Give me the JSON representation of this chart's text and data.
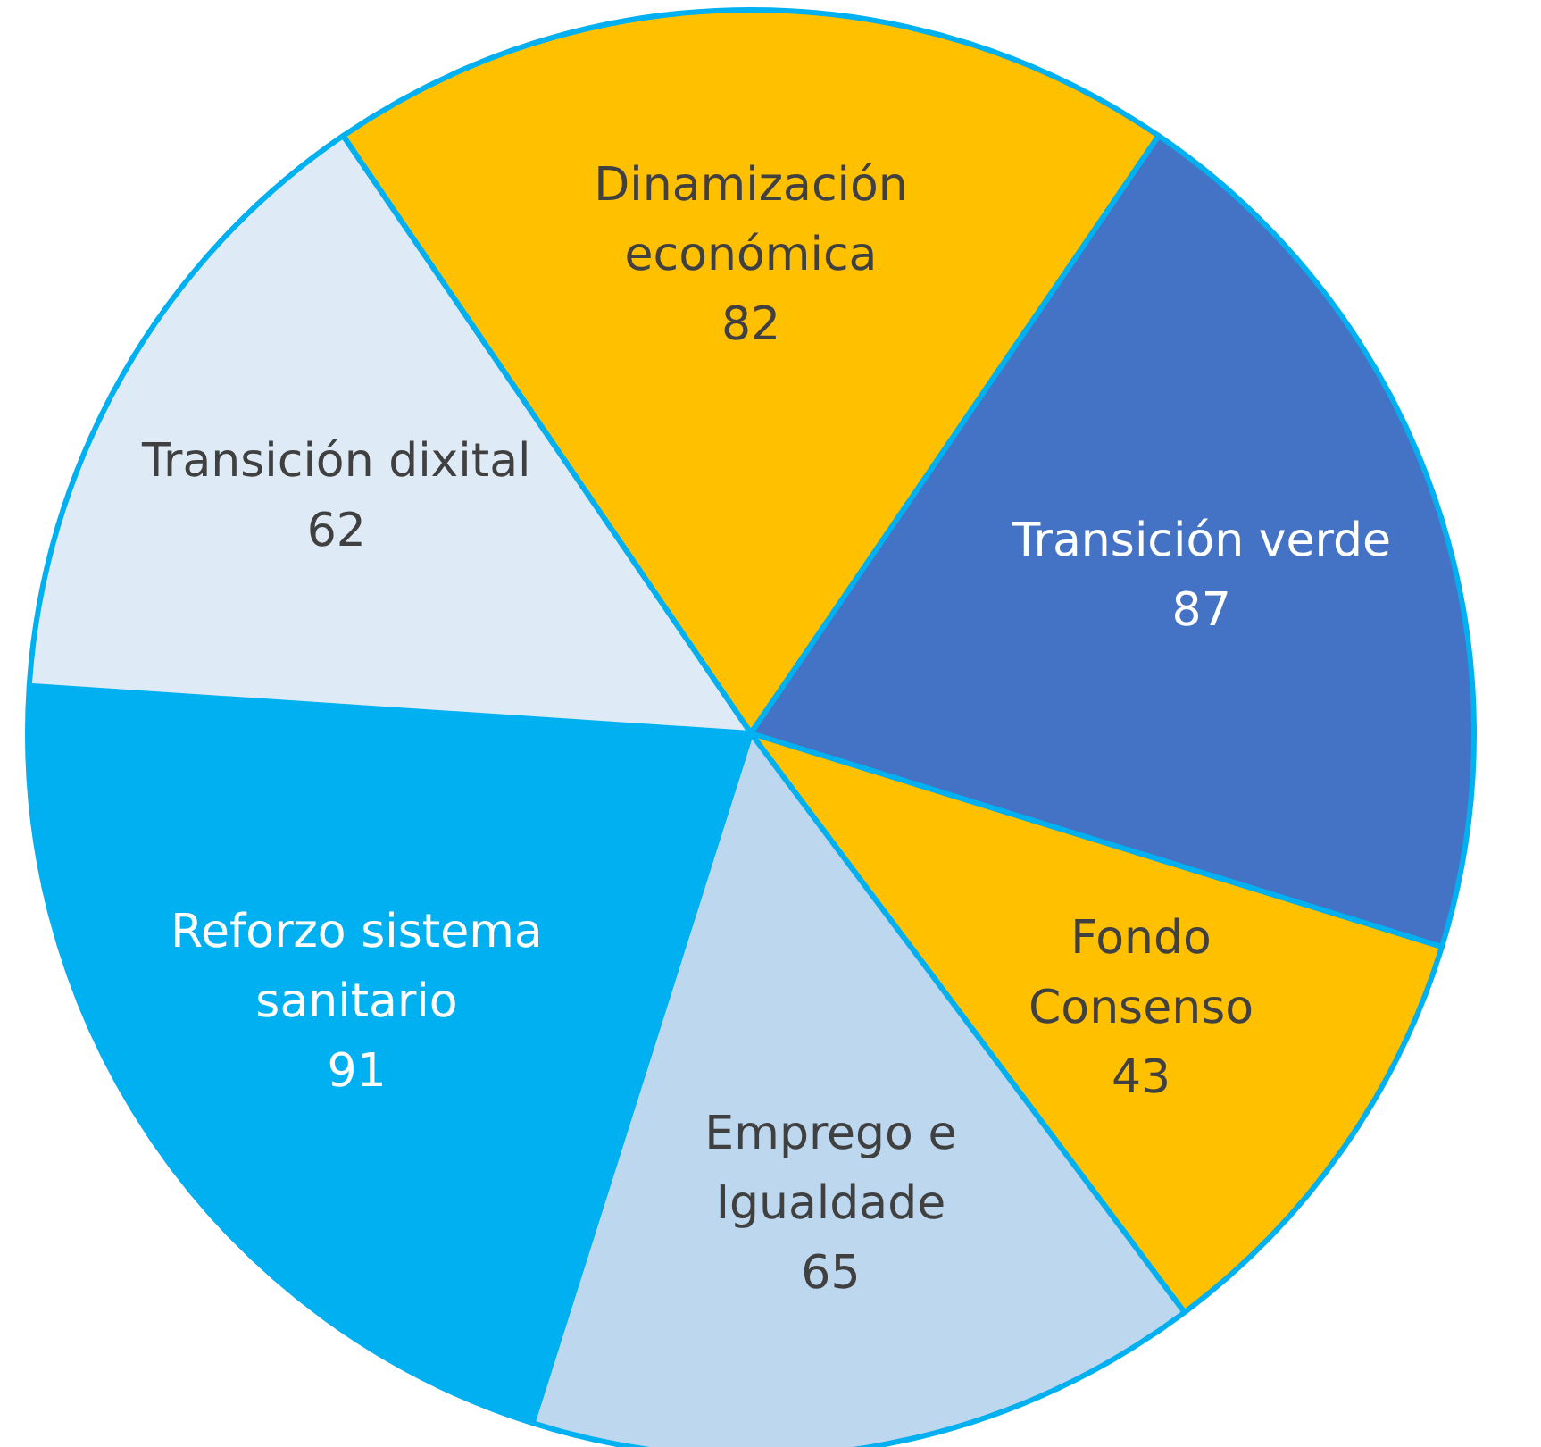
{
  "chart_data": {
    "type": "pie",
    "categories": [
      "Dinamización\neconómica",
      "Transición verde",
      "Fondo\nConsenso",
      "Emprego e\nIgualdade",
      "Reforzo sistema\nsanitario",
      "Transición dixital"
    ],
    "values": [
      82,
      87,
      43,
      65,
      91,
      62
    ],
    "colors": [
      "#ffc000",
      "#4472c4",
      "#ffc000",
      "#bdd7ee",
      "#00b0f0",
      "#deebf7"
    ],
    "data_labels": true
  }
}
